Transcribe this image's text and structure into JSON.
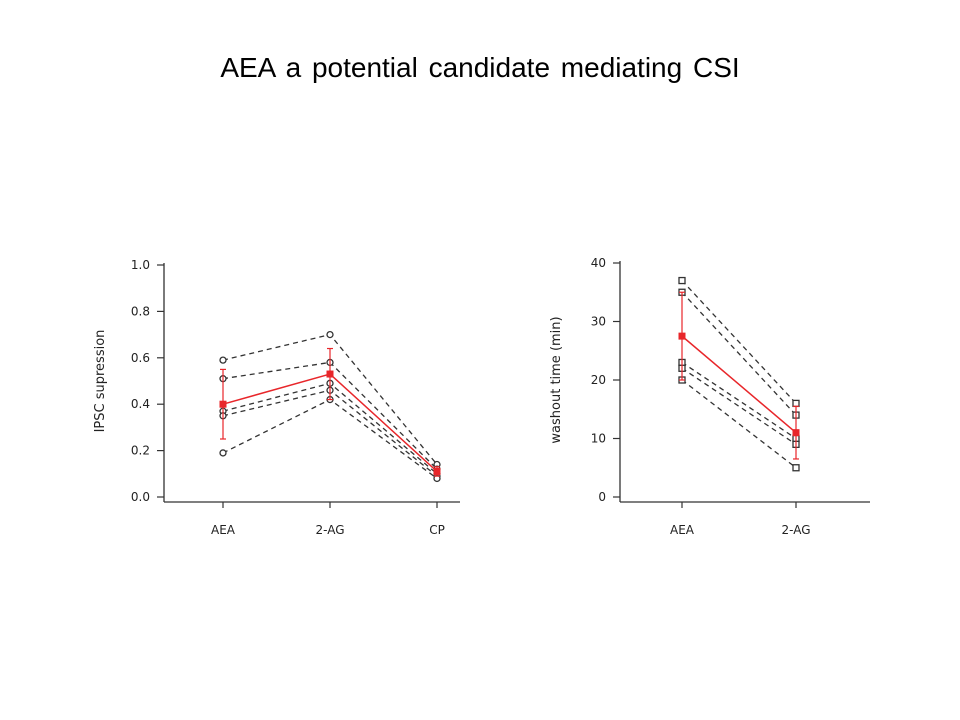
{
  "slide": {
    "title": "AEA  a potential candidate mediating CSI"
  },
  "colors": {
    "individual": "#333333",
    "mean": "#e8262a",
    "axis": "#333333"
  },
  "chart_data": [
    {
      "type": "line",
      "marker": "circle",
      "categories": [
        "AEA",
        "2-AG",
        "CP"
      ],
      "ylabel": "IPSC supression",
      "xlabel": "",
      "ylim": [
        0,
        1.0
      ],
      "yticks": [
        0.0,
        0.2,
        0.4,
        0.6,
        0.8,
        1.0
      ],
      "ytick_labels": [
        "0.0",
        "0.2",
        "0.4",
        "0.6",
        "0.8",
        "1.0"
      ],
      "individual_series": [
        [
          0.59,
          0.7,
          0.14
        ],
        [
          0.51,
          0.58,
          0.12
        ],
        [
          0.37,
          0.49,
          0.1
        ],
        [
          0.35,
          0.46,
          0.09
        ],
        [
          0.19,
          0.42,
          0.08
        ]
      ],
      "mean": {
        "values": [
          0.4,
          0.53,
          0.11
        ],
        "error": [
          0.15,
          0.11,
          0.02
        ]
      }
    },
    {
      "type": "line",
      "marker": "square",
      "categories": [
        "AEA",
        "2-AG"
      ],
      "ylabel": "washout time (min)",
      "xlabel": "",
      "ylim": [
        0,
        40
      ],
      "yticks": [
        0,
        10,
        20,
        30,
        40
      ],
      "ytick_labels": [
        "0",
        "10",
        "20",
        "30",
        "40"
      ],
      "individual_series": [
        [
          37,
          16
        ],
        [
          35,
          14
        ],
        [
          23,
          10
        ],
        [
          22,
          9
        ],
        [
          20,
          5
        ]
      ],
      "mean": {
        "values": [
          27.5,
          11
        ],
        "error": [
          7.5,
          4.5
        ]
      }
    }
  ]
}
